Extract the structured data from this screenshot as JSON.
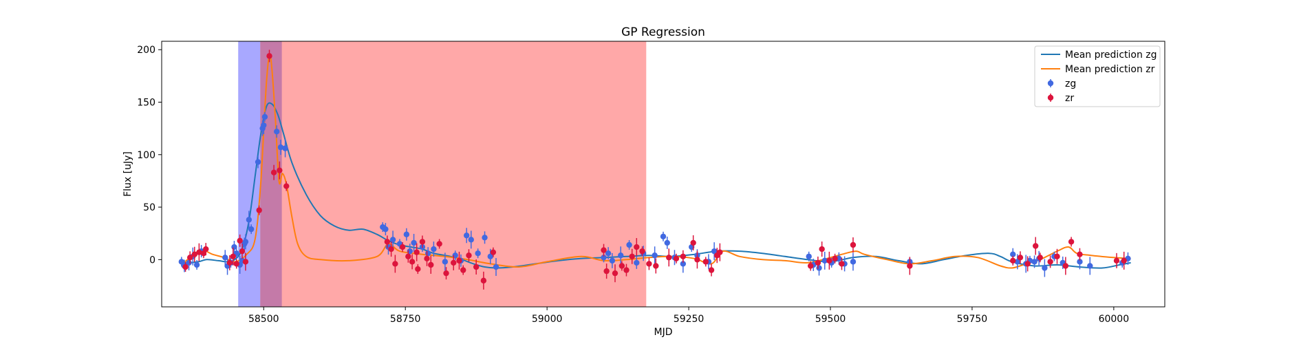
{
  "chart_data": {
    "type": "line",
    "title": "GP Regression",
    "xlabel": "MJD",
    "ylabel": "Flux [uJy]",
    "xlim": [
      58320,
      60090
    ],
    "ylim": [
      -45,
      208
    ],
    "xticks": [
      58500,
      58750,
      59000,
      59250,
      59500,
      59750,
      60000
    ],
    "yticks": [
      0,
      50,
      100,
      150,
      200
    ],
    "legend_position": "top-right",
    "shaded_regions": [
      {
        "x0": 58455,
        "x1": 58532,
        "color": "#a8a8ff"
      },
      {
        "x0": 58494,
        "x1": 59175,
        "color": "#ffa8a8"
      },
      {
        "x0": 58494,
        "x1": 58532,
        "color": "#c47aa8"
      }
    ],
    "lines": [
      {
        "name": "Mean prediction zg",
        "color": "#1f77b4",
        "x": [
          58355,
          58370,
          58385,
          58400,
          58420,
          58440,
          58455,
          58465,
          58475,
          58485,
          58495,
          58505,
          58515,
          58525,
          58535,
          58550,
          58575,
          58600,
          58625,
          58650,
          58675,
          58700,
          58720,
          58740,
          58760,
          58780,
          58800,
          58830,
          58850,
          58870,
          58890,
          58910,
          58940,
          58980,
          59020,
          59060,
          59100,
          59140,
          59180,
          59220,
          59260,
          59300,
          59340,
          59380,
          59420,
          59460,
          59500,
          59540,
          59580,
          59620,
          59660,
          59700,
          59740,
          59780,
          59800,
          59820,
          59860,
          59900,
          59940,
          59980,
          60010,
          60030
        ],
        "y": [
          -4,
          -3,
          -2,
          0,
          -1,
          -2,
          3,
          15,
          40,
          80,
          120,
          146,
          148,
          138,
          120,
          92,
          62,
          42,
          32,
          28,
          29,
          24,
          18,
          14,
          12,
          10,
          6,
          3,
          0,
          -4,
          -7,
          -8,
          -7,
          -4,
          -1,
          1,
          2,
          3,
          4,
          3,
          5,
          8,
          8,
          6,
          3,
          0,
          -2,
          2,
          3,
          -1,
          -4,
          0,
          4,
          6,
          3,
          -2,
          -6,
          -5,
          -7,
          -8,
          -5,
          -3
        ]
      },
      {
        "name": "Mean prediction zr",
        "color": "#ff7f0e",
        "x": [
          58355,
          58370,
          58390,
          58410,
          58430,
          58450,
          58470,
          58485,
          58495,
          58505,
          58512,
          58520,
          58527,
          58533,
          58540,
          58550,
          58560,
          58575,
          58600,
          58650,
          58700,
          58720,
          58740,
          58780,
          58820,
          58860,
          58900,
          58950,
          59000,
          59060,
          59100,
          59140,
          59180,
          59220,
          59260,
          59290,
          59310,
          59340,
          59380,
          59420,
          59460,
          59500,
          59520,
          59545,
          59560,
          59600,
          59640,
          59680,
          59720,
          59760,
          59800,
          59820,
          59840,
          59870,
          59900,
          59920,
          59935,
          59960,
          60000,
          60030
        ],
        "y": [
          -5,
          2,
          9,
          5,
          2,
          -2,
          5,
          20,
          75,
          170,
          193,
          140,
          75,
          82,
          72,
          40,
          15,
          3,
          0,
          -1,
          3,
          15,
          8,
          5,
          3,
          0,
          -4,
          -7,
          -2,
          3,
          -1,
          0,
          2,
          3,
          1,
          -4,
          8,
          3,
          0,
          -1,
          -3,
          2,
          5,
          8,
          5,
          0,
          -4,
          -1,
          3,
          2,
          -6,
          -8,
          -5,
          0,
          8,
          12,
          6,
          4,
          2,
          1
        ]
      }
    ],
    "scatter": [
      {
        "name": "zg",
        "color": "#4169e1",
        "points": [
          [
            58355,
            -2
          ],
          [
            58360,
            -6
          ],
          [
            58368,
            -3
          ],
          [
            58375,
            3
          ],
          [
            58382,
            -5
          ],
          [
            58390,
            8
          ],
          [
            58432,
            2
          ],
          [
            58436,
            -6
          ],
          [
            58442,
            -3
          ],
          [
            58448,
            12
          ],
          [
            58452,
            6
          ],
          [
            58458,
            -5
          ],
          [
            58462,
            -1
          ],
          [
            58466,
            15
          ],
          [
            58468,
            17
          ],
          [
            58474,
            38
          ],
          [
            58478,
            29
          ],
          [
            58490,
            93
          ],
          [
            58498,
            125
          ],
          [
            58500,
            128
          ],
          [
            58502,
            136
          ],
          [
            58523,
            122
          ],
          [
            58530,
            107
          ],
          [
            58538,
            106
          ],
          [
            58710,
            31
          ],
          [
            58715,
            29
          ],
          [
            58720,
            12
          ],
          [
            58728,
            19
          ],
          [
            58740,
            15
          ],
          [
            58752,
            24
          ],
          [
            58758,
            8
          ],
          [
            58765,
            16
          ],
          [
            58780,
            12
          ],
          [
            58790,
            6
          ],
          [
            58800,
            10
          ],
          [
            58820,
            -2
          ],
          [
            58838,
            4
          ],
          [
            58848,
            -1
          ],
          [
            58858,
            23
          ],
          [
            58866,
            19
          ],
          [
            58878,
            6
          ],
          [
            58890,
            21
          ],
          [
            58900,
            3
          ],
          [
            58910,
            -7
          ],
          [
            59100,
            2
          ],
          [
            59108,
            6
          ],
          [
            59115,
            -1
          ],
          [
            59130,
            4
          ],
          [
            59145,
            14
          ],
          [
            59158,
            -3
          ],
          [
            59170,
            6
          ],
          [
            59190,
            4
          ],
          [
            59205,
            22
          ],
          [
            59212,
            16
          ],
          [
            59225,
            2
          ],
          [
            59240,
            -4
          ],
          [
            59255,
            12
          ],
          [
            59265,
            4
          ],
          [
            59285,
            -2
          ],
          [
            59295,
            8
          ],
          [
            59462,
            3
          ],
          [
            59470,
            -5
          ],
          [
            59480,
            -8
          ],
          [
            59490,
            -1
          ],
          [
            59502,
            -3
          ],
          [
            59515,
            1
          ],
          [
            59525,
            -4
          ],
          [
            59540,
            -2
          ],
          [
            59640,
            -2
          ],
          [
            59822,
            5
          ],
          [
            59830,
            -2
          ],
          [
            59845,
            -4
          ],
          [
            59852,
            -1
          ],
          [
            59860,
            -2
          ],
          [
            59868,
            1
          ],
          [
            59878,
            -8
          ],
          [
            59895,
            3
          ],
          [
            59910,
            -3
          ],
          [
            59940,
            -2
          ],
          [
            59958,
            -6
          ],
          [
            60015,
            -3
          ],
          [
            60025,
            1
          ]
        ]
      },
      {
        "name": "zr",
        "color": "#dc143c",
        "points": [
          [
            58362,
            -7
          ],
          [
            58370,
            2
          ],
          [
            58378,
            5
          ],
          [
            58386,
            7
          ],
          [
            58394,
            6
          ],
          [
            58398,
            10
          ],
          [
            58440,
            -3
          ],
          [
            58446,
            3
          ],
          [
            58452,
            -4
          ],
          [
            58458,
            18
          ],
          [
            58462,
            8
          ],
          [
            58468,
            -2
          ],
          [
            58492,
            47
          ],
          [
            58510,
            194
          ],
          [
            58518,
            83
          ],
          [
            58528,
            85
          ],
          [
            58540,
            70
          ],
          [
            58718,
            17
          ],
          [
            58725,
            10
          ],
          [
            58732,
            -4
          ],
          [
            58745,
            12
          ],
          [
            58755,
            3
          ],
          [
            58762,
            -2
          ],
          [
            58770,
            7
          ],
          [
            58772,
            -9
          ],
          [
            58780,
            17
          ],
          [
            58788,
            1
          ],
          [
            58795,
            -5
          ],
          [
            58810,
            15
          ],
          [
            58822,
            -13
          ],
          [
            58835,
            -3
          ],
          [
            58845,
            -1
          ],
          [
            58852,
            -10
          ],
          [
            58862,
            4
          ],
          [
            58875,
            -7
          ],
          [
            58888,
            -20
          ],
          [
            58905,
            7
          ],
          [
            59100,
            9
          ],
          [
            59105,
            -11
          ],
          [
            59120,
            -13
          ],
          [
            59132,
            -6
          ],
          [
            59140,
            -10
          ],
          [
            59150,
            3
          ],
          [
            59158,
            12
          ],
          [
            59168,
            8
          ],
          [
            59180,
            -4
          ],
          [
            59192,
            -6
          ],
          [
            59215,
            2
          ],
          [
            59228,
            1
          ],
          [
            59240,
            3
          ],
          [
            59258,
            16
          ],
          [
            59265,
            0
          ],
          [
            59280,
            -2
          ],
          [
            59290,
            -10
          ],
          [
            59300,
            4
          ],
          [
            59305,
            7
          ],
          [
            59465,
            -6
          ],
          [
            59478,
            -3
          ],
          [
            59485,
            10
          ],
          [
            59498,
            -1
          ],
          [
            59508,
            1
          ],
          [
            59520,
            -4
          ],
          [
            59540,
            14
          ],
          [
            59640,
            -6
          ],
          [
            59822,
            -1
          ],
          [
            59835,
            2
          ],
          [
            59848,
            -4
          ],
          [
            59862,
            13
          ],
          [
            59870,
            2
          ],
          [
            59888,
            -2
          ],
          [
            59900,
            3
          ],
          [
            59915,
            -6
          ],
          [
            59925,
            17
          ],
          [
            59940,
            5
          ],
          [
            60005,
            -1
          ],
          [
            60018,
            -1
          ]
        ]
      }
    ]
  }
}
